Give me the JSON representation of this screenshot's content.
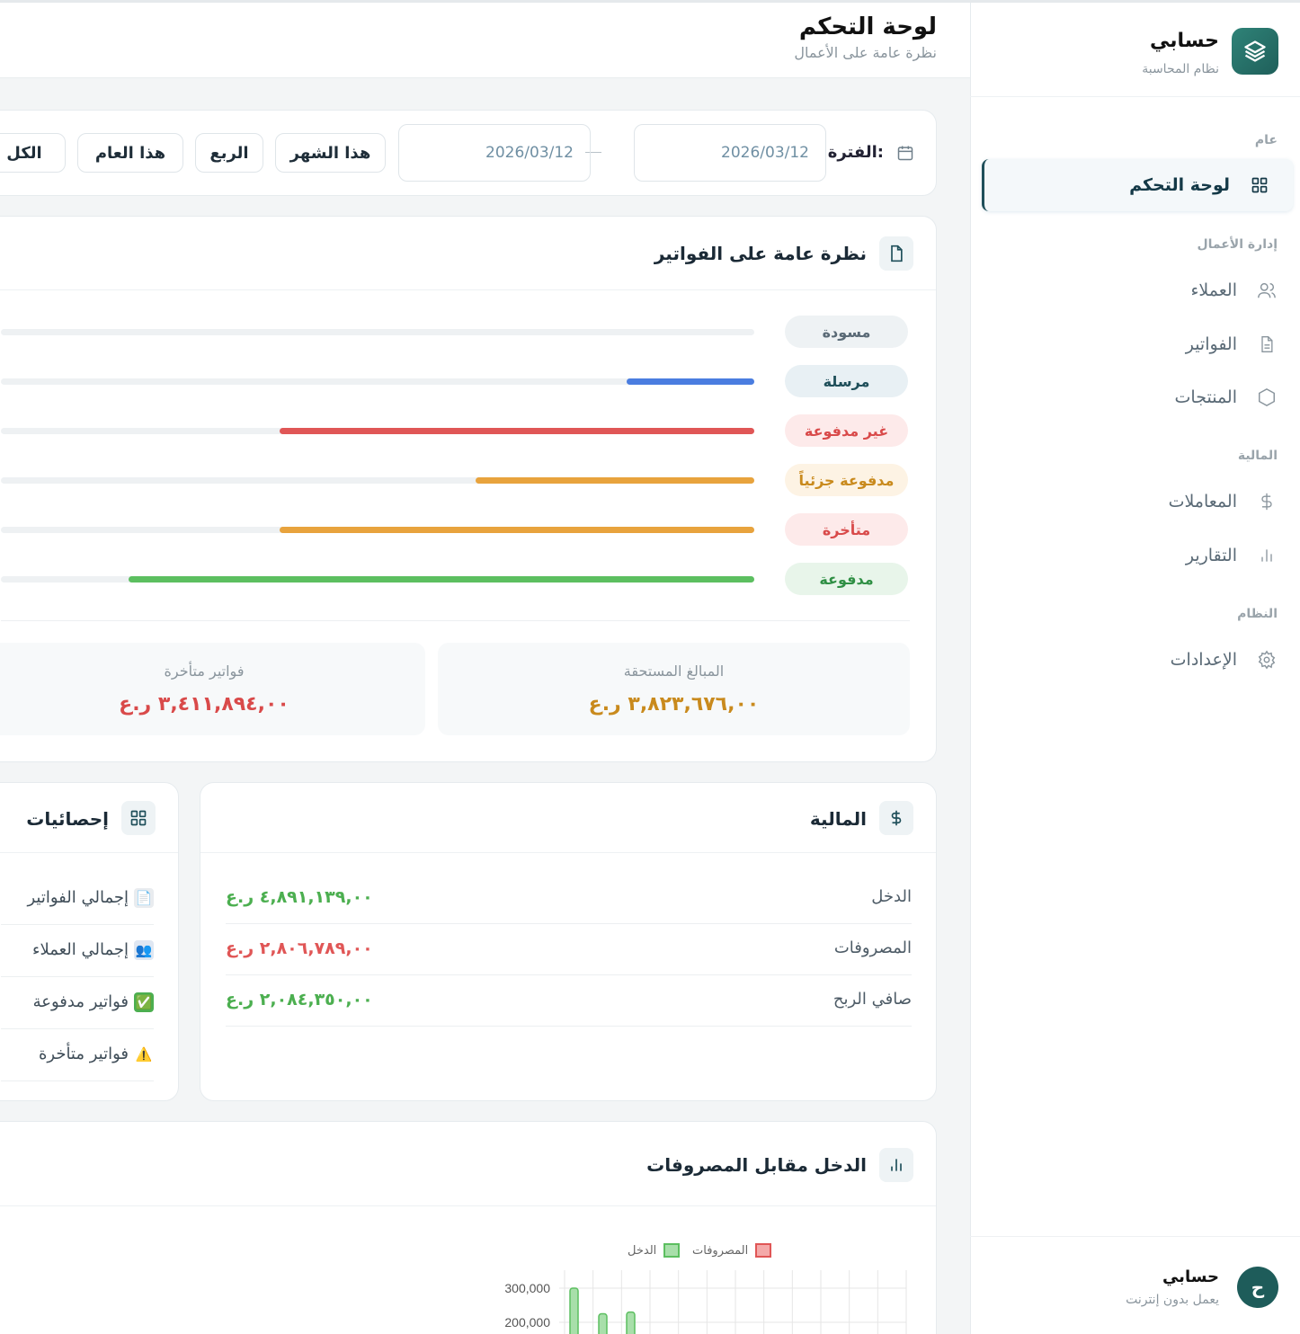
{
  "sidebar": {
    "brand_title": "حسابي",
    "brand_sub": "نظام المحاسبة",
    "sections": {
      "general": "عام",
      "business": "إدارة الأعمال",
      "finance": "المالية",
      "system": "النظام"
    },
    "items": {
      "dashboard": "لوحة التحكم",
      "customers": "العملاء",
      "invoices": "الفواتير",
      "products": "المنتجات",
      "transactions": "المعاملات",
      "reports": "التقارير",
      "settings": "الإعدادات"
    },
    "footer": {
      "avatar_letter": "ح",
      "title": "حسابي",
      "sub": "يعمل بدون إنترنت"
    }
  },
  "header": {
    "title": "لوحة التحكم",
    "sub": "نظرة عامة على الأعمال"
  },
  "filter": {
    "label": "الفترة:",
    "date_from": "2026/03/12",
    "date_to": "2026/03/12",
    "chips": [
      "هذا الشهر",
      "الربع",
      "هذا العام",
      "الكل"
    ]
  },
  "invoices_overview": {
    "title": "نظرة عامة على الفواتير",
    "statuses": [
      {
        "label": "مسودة",
        "fraction": 0.0,
        "color": "#9aa4ab"
      },
      {
        "label": "مرسلة",
        "fraction": 0.17,
        "color": "#4a7de0"
      },
      {
        "label": "غير مدفوعة",
        "fraction": 0.63,
        "color": "#e05656"
      },
      {
        "label": "مدفوعة جزئياً",
        "fraction": 0.37,
        "color": "#e8a33d"
      },
      {
        "label": "متأخرة",
        "fraction": 0.63,
        "color": "#e8a33d"
      },
      {
        "label": "مدفوعة",
        "fraction": 0.83,
        "color": "#5cbf60"
      }
    ],
    "due_label": "المبالغ المستحقة",
    "due_value": "٣,٨٢٣,٦٧٦,٠٠ ر.ع",
    "overdue_label": "فواتير متأخرة",
    "overdue_value": "٣,٤١١,٨٩٤,٠٠ ر.ع"
  },
  "finance": {
    "title": "المالية",
    "rows": [
      {
        "label": "الدخل",
        "value": "٤,٨٩١,١٣٩,٠٠ ر.ع",
        "color": "#4caf50"
      },
      {
        "label": "المصروفات",
        "value": "٢,٨٠٦,٧٨٩,٠٠ ر.ع",
        "color": "#e05656"
      },
      {
        "label": "صافي الربح",
        "value": "٢,٠٨٤,٣٥٠,٠٠ ر.ع",
        "color": "#4caf50"
      }
    ]
  },
  "stats": {
    "title": "إحصائيات",
    "rows": [
      {
        "label": "إجمالي الفواتير",
        "emoji": "📄"
      },
      {
        "label": "إجمالي العملاء",
        "emoji": "👥"
      },
      {
        "label": "فواتير مدفوعة",
        "emoji": "✅"
      },
      {
        "label": "فواتير متأخرة",
        "emoji": "⚠️"
      }
    ]
  },
  "income_chart": {
    "title": "الدخل مقابل المصروفات"
  },
  "chart_data": {
    "type": "bar",
    "legend": [
      "المصروفات",
      "الدخل"
    ],
    "legend_placement": "top",
    "y_ticks": [
      "300,000",
      "200,000"
    ],
    "series": [
      {
        "name": "الدخل",
        "color": "#5cbf60",
        "values": [
          300000,
          225000,
          230000
        ]
      }
    ],
    "grid": true
  }
}
